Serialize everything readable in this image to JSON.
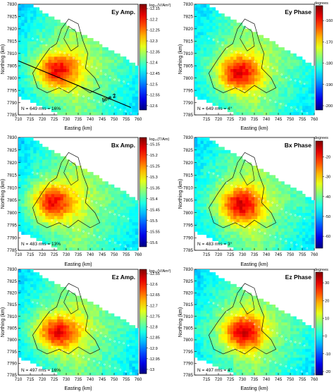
{
  "chart_data": [
    {
      "type": "heatmap",
      "title": "Ey Amp.",
      "stats": "N = 649 rms = 16%",
      "profile_label": "line 2",
      "xlabel": "Easting (km)",
      "ylabel": "Northing (km)",
      "x_ticks": [
        "710",
        "715",
        "720",
        "725",
        "730",
        "735",
        "740",
        "745",
        "750",
        "755",
        "760"
      ],
      "y_ticks": [
        "7785",
        "7790",
        "7795",
        "7800",
        "7805",
        "7810",
        "7815",
        "7820",
        "7825",
        "7830"
      ],
      "colorbar_label": "log₁₀(V/Am²)",
      "colorbar_ticks": [
        "-12.15",
        "-12.2",
        "-12.25",
        "-12.3",
        "-12.35",
        "-12.4",
        "-12.45",
        "-12.5",
        "-12.55",
        "-12.6"
      ],
      "colorbar_range": [
        -12.62,
        -12.13
      ],
      "colormap": "jet",
      "hot_center": [
        726,
        7803
      ],
      "profile_line": [
        [
          710,
          7807
        ],
        [
          757,
          7788
        ]
      ]
    },
    {
      "type": "heatmap",
      "title": "Ey Phase",
      "stats": "N = 649 rms = 4°",
      "xlabel": "Easting (km)",
      "ylabel": "Northing (km)",
      "x_ticks": [
        "715",
        "720",
        "725",
        "730",
        "735",
        "740",
        "745",
        "750",
        "755",
        "760"
      ],
      "y_ticks": [
        "7785",
        "7790",
        "7795",
        "7800",
        "7805",
        "7810",
        "7815",
        "7820",
        "7825",
        "7830"
      ],
      "colorbar_label": "degrees",
      "colorbar_ticks": [
        "-160",
        "-170",
        "-180",
        "-190",
        "-200"
      ],
      "colorbar_range": [
        -202,
        -153
      ],
      "colormap": "jet",
      "hot_center": [
        728,
        7802
      ]
    },
    {
      "type": "heatmap",
      "title": "Bx Amp.",
      "stats": "N = 483 rms = 13%",
      "xlabel": "Easting (km)",
      "ylabel": "Northing (km)",
      "x_ticks": [
        "710",
        "715",
        "720",
        "725",
        "730",
        "735",
        "740",
        "745",
        "750",
        "755",
        "760"
      ],
      "y_ticks": [
        "7785",
        "7790",
        "7795",
        "7800",
        "7805",
        "7810",
        "7815",
        "7820",
        "7825",
        "7830"
      ],
      "colorbar_label": "log₁₀(T/Am)",
      "colorbar_ticks": [
        "-15.15",
        "-15.2",
        "-15.25",
        "-15.3",
        "-15.35",
        "-15.4",
        "-15.45",
        "-15.5",
        "-15.55",
        "-15.6"
      ],
      "colorbar_range": [
        -15.62,
        -15.12
      ],
      "colormap": "jet",
      "hot_center": [
        724,
        7804
      ]
    },
    {
      "type": "heatmap",
      "title": "Bx Phase",
      "stats": "N = 483 rms = 3°",
      "xlabel": "Easting (km)",
      "ylabel": "Northing (km)",
      "x_ticks": [
        "715",
        "720",
        "725",
        "730",
        "735",
        "740",
        "745",
        "750",
        "755",
        "760"
      ],
      "y_ticks": [
        "7785",
        "7790",
        "7795",
        "7800",
        "7805",
        "7810",
        "7815",
        "7820",
        "7825",
        "7830"
      ],
      "colorbar_label": "degrees",
      "colorbar_ticks": [
        "-20",
        "-30",
        "-40",
        "-50",
        "-60"
      ],
      "colorbar_range": [
        -66,
        -12
      ],
      "colormap": "jet",
      "hot_center": [
        729,
        7803
      ]
    },
    {
      "type": "heatmap",
      "title": "Ez Amp.",
      "stats": "N = 497 rms = 16%",
      "xlabel": "Easting (km)",
      "ylabel": "Northing (km)",
      "x_ticks": [
        "710",
        "715",
        "720",
        "725",
        "730",
        "735",
        "740",
        "745",
        "750",
        "755",
        "760"
      ],
      "y_ticks": [
        "7785",
        "7790",
        "7795",
        "7800",
        "7805",
        "7810",
        "7815",
        "7820",
        "7825",
        "7830"
      ],
      "colorbar_label": "log₁₀(V/Am²)",
      "colorbar_ticks": [
        "-12.55",
        "-12.6",
        "-12.65",
        "-12.7",
        "-12.75",
        "-12.8",
        "-12.85",
        "-12.9",
        "-12.95",
        "-13"
      ],
      "colorbar_range": [
        -13.02,
        -12.53
      ],
      "colormap": "jet",
      "hot_center": [
        726,
        7803
      ]
    },
    {
      "type": "heatmap",
      "title": "Ez Phase",
      "stats": "N = 497 rms = 4°",
      "xlabel": "Easting (km)",
      "ylabel": "Northing (km)",
      "x_ticks": [
        "715",
        "720",
        "725",
        "730",
        "735",
        "740",
        "745",
        "750",
        "755",
        "760"
      ],
      "y_ticks": [
        "7785",
        "7790",
        "7795",
        "7800",
        "7805",
        "7810",
        "7815",
        "7820",
        "7825",
        "7830"
      ],
      "colorbar_label": "degrees",
      "colorbar_ticks": [
        "30",
        "20",
        "10",
        "0",
        "-10",
        "-20"
      ],
      "colorbar_range": [
        -22,
        36
      ],
      "colormap": "jet",
      "hot_center": [
        730,
        7803
      ]
    }
  ]
}
